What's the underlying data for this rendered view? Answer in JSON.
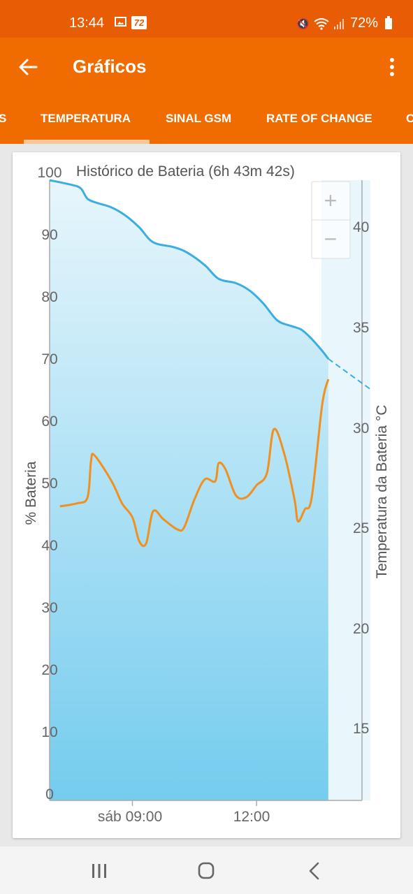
{
  "status_bar": {
    "time": "13:44",
    "badge": "72",
    "battery_percent": "72%",
    "icons": [
      "image-icon",
      "badge-icon",
      "mute-icon",
      "wifi-icon",
      "signal-icon",
      "battery-icon"
    ]
  },
  "app_bar": {
    "title": "Gráficos",
    "back_icon": "arrow-left-icon",
    "menu_icon": "more-vertical-icon"
  },
  "tabs": [
    {
      "label": "S",
      "active": false
    },
    {
      "label": "TEMPERATURA",
      "active": true
    },
    {
      "label": "SINAL GSM",
      "active": false
    },
    {
      "label": "RATE OF CHANGE",
      "active": false
    },
    {
      "label": "C",
      "active": false
    }
  ],
  "colors": {
    "status": "#e85d04",
    "accent": "#f16c00",
    "tab_indicator": "#f5c89b",
    "battery_line": "#3aaee0",
    "temperature_line": "#f0901e"
  },
  "zoom": {
    "in_label": "+",
    "out_label": "−"
  },
  "chart_data": {
    "type": "line",
    "title": "Histórico de Bateria (6h 43m 42s)",
    "ylabel": "% Bateria",
    "y2label": "Temperatura da Bateria °C",
    "ylim": [
      0,
      100
    ],
    "y2lim": [
      11.25,
      42.25
    ],
    "xlim": [
      "07:00",
      "14:45"
    ],
    "yticks": [
      "0",
      "10",
      "20",
      "30",
      "40",
      "50",
      "60",
      "70",
      "80",
      "90",
      "100"
    ],
    "y2ticks": [
      "15",
      "20",
      "25",
      "30",
      "35",
      "40"
    ],
    "xticks": [
      {
        "label": "sáb 09:00",
        "time": "09:00"
      },
      {
        "label": "12:00",
        "time": "12:00"
      }
    ],
    "series": [
      {
        "axis": "left",
        "area": true,
        "points": [
          [
            "07:00",
            100
          ],
          [
            "07:30",
            99.3
          ],
          [
            "07:45",
            98.7
          ],
          [
            "07:55",
            97
          ],
          [
            "08:10",
            96.3
          ],
          [
            "08:30",
            95.6
          ],
          [
            "08:50",
            94.3
          ],
          [
            "09:10",
            92.4
          ],
          [
            "09:30",
            90
          ],
          [
            "10:00",
            89.2
          ],
          [
            "10:20",
            88.3
          ],
          [
            "10:45",
            86.3
          ],
          [
            "11:05",
            84.1
          ],
          [
            "11:30",
            83.4
          ],
          [
            "11:50",
            82.2
          ],
          [
            "12:10",
            80.1
          ],
          [
            "12:30",
            77.4
          ],
          [
            "12:50",
            76.5
          ],
          [
            "13:05",
            75.9
          ],
          [
            "13:20",
            74.4
          ],
          [
            "13:35",
            72.5
          ],
          [
            "13:44",
            71.2
          ]
        ],
        "projection": [
          [
            "13:44",
            71.2
          ],
          [
            "14:45",
            66.3
          ]
        ]
      },
      {
        "axis": "right",
        "points": [
          [
            "07:15",
            25.95
          ],
          [
            "07:40",
            26.1
          ],
          [
            "07:55",
            26.4
          ],
          [
            "08:00",
            28.2
          ],
          [
            "08:05",
            28.5
          ],
          [
            "08:30",
            27.2
          ],
          [
            "08:45",
            26.1
          ],
          [
            "09:00",
            25.4
          ],
          [
            "09:10",
            24.2
          ],
          [
            "09:20",
            24.1
          ],
          [
            "09:30",
            25.7
          ],
          [
            "09:45",
            25.3
          ],
          [
            "10:05",
            24.8
          ],
          [
            "10:15",
            24.9
          ],
          [
            "10:30",
            26.3
          ],
          [
            "10:45",
            27.3
          ],
          [
            "11:00",
            27.2
          ],
          [
            "11:05",
            28.1
          ],
          [
            "11:15",
            27.8
          ],
          [
            "11:30",
            26.5
          ],
          [
            "11:45",
            26.4
          ],
          [
            "12:00",
            27.0
          ],
          [
            "12:15",
            27.6
          ],
          [
            "12:25",
            29.8
          ],
          [
            "12:40",
            28.6
          ],
          [
            "12:55",
            26.3
          ],
          [
            "13:00",
            25.2
          ],
          [
            "13:10",
            25.8
          ],
          [
            "13:20",
            26.4
          ],
          [
            "13:35",
            31.0
          ],
          [
            "13:44",
            32.3
          ]
        ]
      }
    ]
  }
}
